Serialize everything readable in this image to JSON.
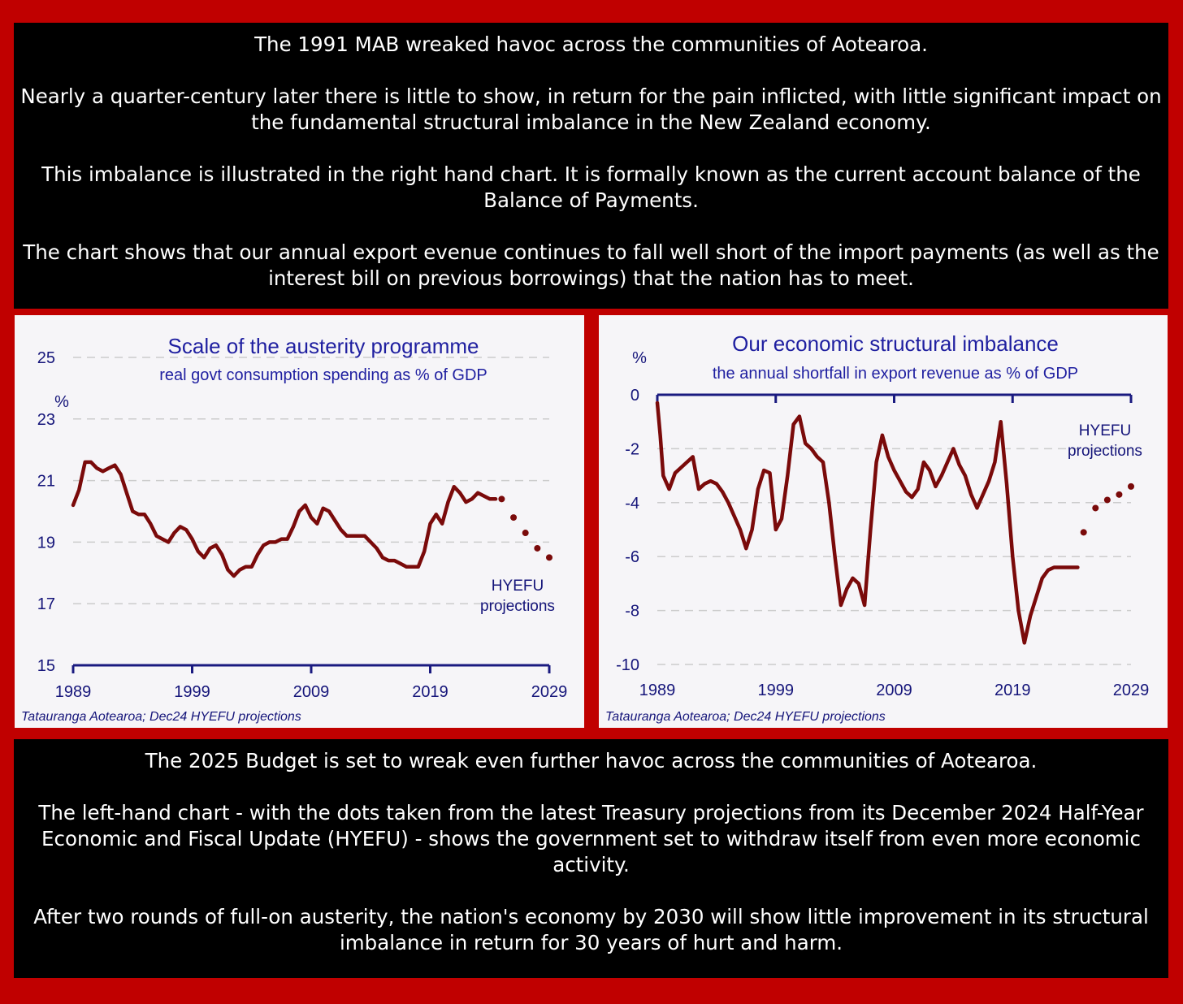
{
  "top_text": {
    "p1": "The 1991 MAB wreaked havoc across the communities of Aotearoa.",
    "p2": "Nearly a quarter-century later there is little to show, in return for the pain inflicted, with little significant impact on the fundamental structural imbalance in the New Zealand economy.",
    "p3": "This imbalance is illustrated in the right hand chart. It is formally known as the current account balance of the Balance of Payments.",
    "p4": "The chart shows that our annual export evenue continues to fall well short of the import payments (as well as the interest bill on previous borrowings) that the nation has to meet."
  },
  "bottom_text": {
    "p1": "The 2025 Budget is set to wreak even further havoc across the communities of Aotearoa.",
    "p2": "The left-hand chart - with the dots taken from the latest Treasury projections from its December 2024 Half-Year Economic and Fiscal Update (HYEFU) - shows the government set to withdraw itself from even more economic activity.",
    "p3": "After two rounds of full-on austerity, the nation's economy by 2030 will show little improvement in its structural imbalance in return for 30 years of hurt and harm."
  },
  "colors": {
    "background": "#c00000",
    "panel": "#000000",
    "line": "#7a0a0a",
    "axis": "#1a1a80",
    "grid": "#cccccc"
  },
  "chart_data": [
    {
      "type": "line",
      "title": "Scale of the austerity programme",
      "subtitle": "real govt consumption spending as % of GDP",
      "ylabel": "%",
      "xlabel": "",
      "source": "Tatauranga Aotearoa; Dec24 HYEFU projections",
      "annotation": [
        "HYEFU",
        "projections"
      ],
      "ylim": [
        15,
        25
      ],
      "yticks": [
        15,
        17,
        19,
        21,
        23,
        25
      ],
      "xlim": [
        1989,
        2029
      ],
      "xticks": [
        1989,
        1999,
        2009,
        2019,
        2029
      ],
      "grid": true,
      "series": [
        {
          "style": "solid",
          "x": [
            1989.0,
            1989.5,
            1990.0,
            1990.5,
            1991.0,
            1991.5,
            1992.0,
            1992.5,
            1993.0,
            1993.5,
            1994.0,
            1994.5,
            1995.0,
            1995.5,
            1996.0,
            1996.5,
            1997.0,
            1997.5,
            1998.0,
            1998.5,
            1999.0,
            1999.5,
            2000.0,
            2000.5,
            2001.0,
            2001.5,
            2002.0,
            2002.5,
            2003.0,
            2003.5,
            2004.0,
            2004.5,
            2005.0,
            2005.5,
            2006.0,
            2006.5,
            2007.0,
            2007.5,
            2008.0,
            2008.5,
            2009.0,
            2009.5,
            2010.0,
            2010.5,
            2011.0,
            2011.5,
            2012.0,
            2012.5,
            2013.0,
            2013.5,
            2014.0,
            2014.5,
            2015.0,
            2015.5,
            2016.0,
            2016.5,
            2017.0,
            2017.5,
            2018.0,
            2018.5,
            2019.0,
            2019.5,
            2020.0,
            2020.5,
            2021.0,
            2021.5,
            2022.0,
            2022.5,
            2023.0,
            2023.5,
            2024.0,
            2024.5
          ],
          "y": [
            20.2,
            20.7,
            21.6,
            21.6,
            21.4,
            21.3,
            21.4,
            21.5,
            21.2,
            20.6,
            20.0,
            19.9,
            19.9,
            19.6,
            19.2,
            19.1,
            19.0,
            19.3,
            19.5,
            19.4,
            19.1,
            18.7,
            18.5,
            18.8,
            18.9,
            18.6,
            18.1,
            17.9,
            18.1,
            18.2,
            18.2,
            18.6,
            18.9,
            19.0,
            19.0,
            19.1,
            19.1,
            19.5,
            20.0,
            20.2,
            19.8,
            19.6,
            20.1,
            20.0,
            19.7,
            19.4,
            19.2,
            19.2,
            19.2,
            19.2,
            19.0,
            18.8,
            18.5,
            18.4,
            18.4,
            18.3,
            18.2,
            18.2,
            18.2,
            18.7,
            19.6,
            19.9,
            19.6,
            20.3,
            20.8,
            20.6,
            20.3,
            20.4,
            20.6,
            20.5,
            20.4,
            20.4
          ]
        },
        {
          "style": "dotted",
          "x": [
            2025.0,
            2026.0,
            2027.0,
            2028.0,
            2029.0
          ],
          "y": [
            20.4,
            19.8,
            19.3,
            18.8,
            18.5
          ]
        }
      ]
    },
    {
      "type": "line",
      "title": "Our economic structural imbalance",
      "subtitle": "the annual shortfall in export revenue as % of GDP",
      "ylabel": "%",
      "xlabel": "",
      "source": "Tatauranga Aotearoa; Dec24 HYEFU projections",
      "annotation": [
        "HYEFU",
        "projections"
      ],
      "ylim": [
        -10,
        0
      ],
      "yticks": [
        0,
        -2,
        -4,
        -6,
        -8,
        -10
      ],
      "xlim": [
        1989,
        2029
      ],
      "xticks": [
        1989,
        1999,
        2009,
        2019,
        2029
      ],
      "grid": true,
      "series": [
        {
          "style": "solid",
          "x": [
            1989.0,
            1989.25,
            1989.5,
            1990.0,
            1990.5,
            1991.0,
            1991.5,
            1992.0,
            1992.5,
            1993.0,
            1993.5,
            1994.0,
            1994.5,
            1995.0,
            1995.5,
            1996.0,
            1996.5,
            1997.0,
            1997.5,
            1998.0,
            1998.5,
            1999.0,
            1999.5,
            2000.0,
            2000.5,
            2001.0,
            2001.5,
            2002.0,
            2002.5,
            2003.0,
            2003.5,
            2004.0,
            2004.5,
            2005.0,
            2005.5,
            2006.0,
            2006.5,
            2007.0,
            2007.5,
            2008.0,
            2008.5,
            2009.0,
            2009.5,
            2010.0,
            2010.5,
            2011.0,
            2011.5,
            2012.0,
            2012.5,
            2013.0,
            2013.5,
            2014.0,
            2014.5,
            2015.0,
            2015.5,
            2016.0,
            2016.5,
            2017.0,
            2017.5,
            2018.0,
            2018.5,
            2019.0,
            2019.5,
            2020.0,
            2020.5,
            2021.0,
            2021.5,
            2022.0,
            2022.5,
            2023.0,
            2023.5,
            2024.0,
            2024.5
          ],
          "y": [
            -0.3,
            -1.5,
            -3.0,
            -3.5,
            -2.9,
            -2.7,
            -2.5,
            -2.3,
            -3.5,
            -3.3,
            -3.2,
            -3.3,
            -3.6,
            -4.0,
            -4.5,
            -5.0,
            -5.7,
            -5.0,
            -3.5,
            -2.8,
            -2.9,
            -5.0,
            -4.6,
            -3.0,
            -1.1,
            -0.8,
            -1.8,
            -2.0,
            -2.3,
            -2.5,
            -4.0,
            -6.0,
            -7.8,
            -7.2,
            -6.8,
            -7.0,
            -7.8,
            -5.0,
            -2.5,
            -1.5,
            -2.3,
            -2.8,
            -3.2,
            -3.6,
            -3.8,
            -3.5,
            -2.5,
            -2.8,
            -3.4,
            -3.0,
            -2.5,
            -2.0,
            -2.6,
            -3.0,
            -3.7,
            -4.2,
            -3.7,
            -3.2,
            -2.5,
            -1.0,
            -3.3,
            -6.0,
            -8.0,
            -9.2,
            -8.2,
            -7.5,
            -6.8,
            -6.5,
            -6.4,
            -6.4,
            -6.4,
            -6.4,
            -6.4
          ]
        },
        {
          "style": "dotted",
          "x": [
            2025.0,
            2026.0,
            2027.0,
            2028.0,
            2029.0
          ],
          "y": [
            -5.1,
            -4.2,
            -3.9,
            -3.7,
            -3.4
          ]
        }
      ]
    }
  ]
}
